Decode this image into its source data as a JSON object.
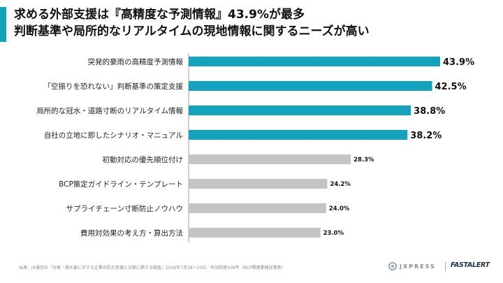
{
  "title": {
    "line1": "求める外部支援は『高精度な予測情報』43.9%が最多",
    "line2": "判断基準や局所的なリアルタイムの現地情報に関するニーズが高い"
  },
  "colors": {
    "accent": "#14a3bd",
    "highlight_bar": "#14a3bd",
    "other_bar": "#c4c4c4",
    "axis_line": "#a0a0a0"
  },
  "chart_data": {
    "type": "bar",
    "orientation": "horizontal",
    "categories": [
      "突発的豪雨の高精度予測情報",
      "「空振りを恐れない」判断基準の策定支援",
      "局所的な冠水・道路寸断のリアルタイム情報",
      "自社の立地に即したシナリオ・マニュアル",
      "初動対応の優先順位付け",
      "BCP策定ガイドライン・テンプレート",
      "サプライチェーン寸断防止ノウハウ",
      "費用対効果の考え方・算出方法"
    ],
    "values": [
      43.9,
      42.5,
      38.8,
      38.2,
      28.3,
      24.2,
      24.0,
      23.0
    ],
    "value_labels": [
      "43.9%",
      "42.5%",
      "38.8%",
      "38.2%",
      "28.3%",
      "24.2%",
      "24.0%",
      "23.0%"
    ],
    "highlighted": [
      true,
      true,
      true,
      true,
      false,
      false,
      false,
      false
    ],
    "xlim": [
      0,
      45
    ],
    "unit": "%"
  },
  "footer": {
    "source": "出典：JX通信社「台風・豪水害に対する企業の防災意識と対策に関する調査」2026年7月18〜20日／有効回答508件（BCP関連業務従事者）"
  },
  "brands": {
    "jxpress": "JXPRESS",
    "fastalert": "FASTALERT"
  }
}
